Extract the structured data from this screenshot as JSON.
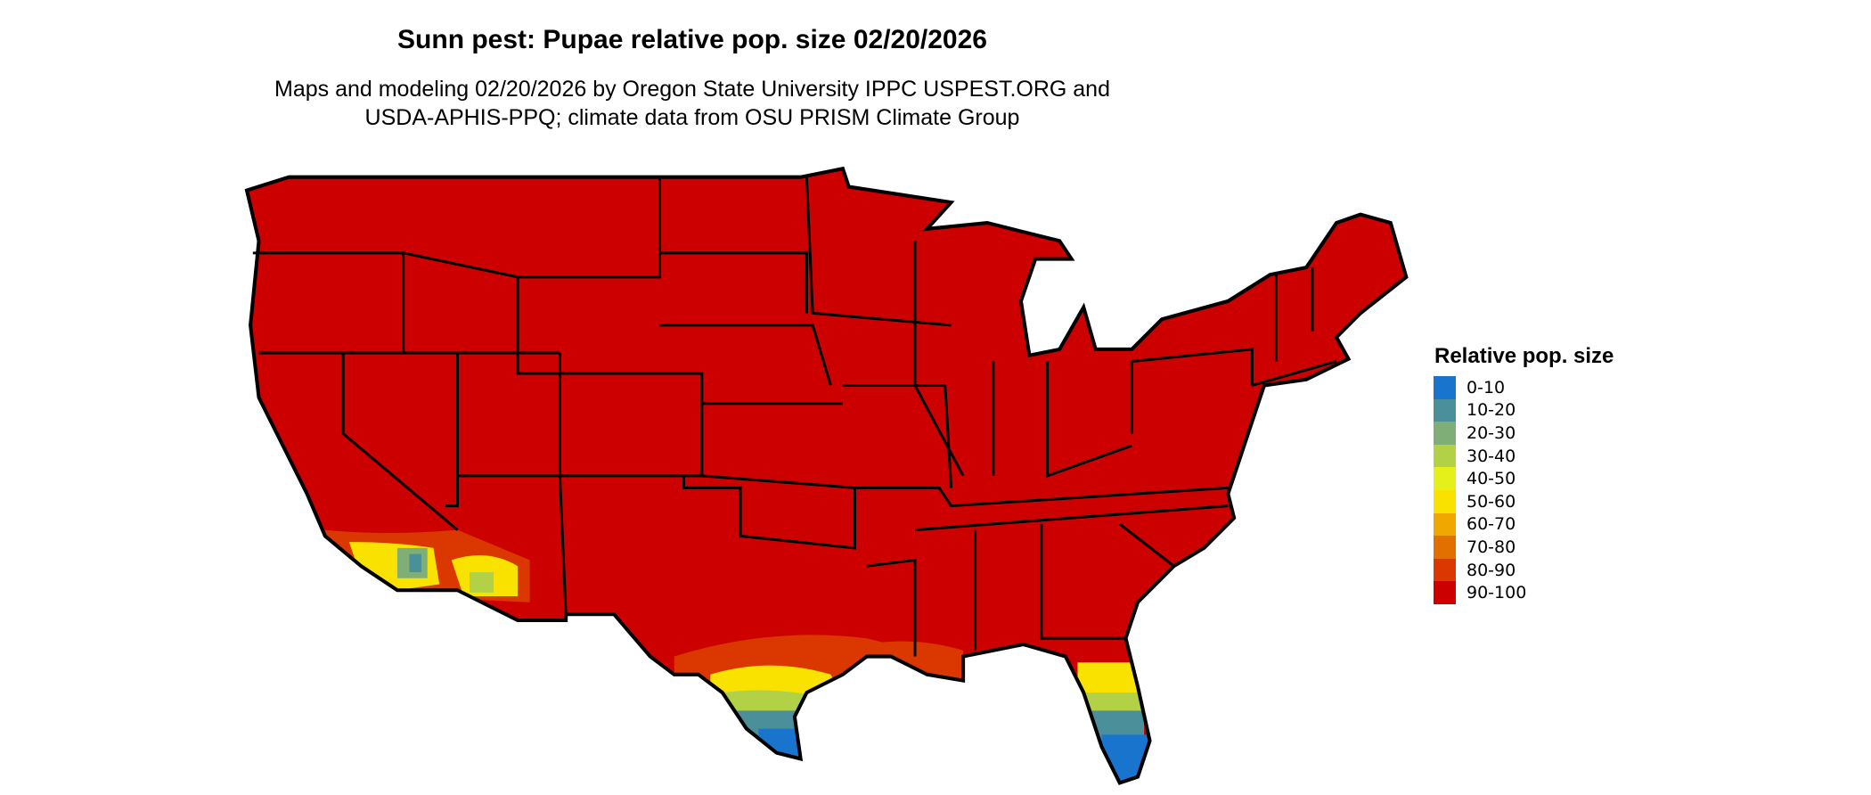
{
  "title": "Sunn pest: Pupae relative pop. size 02/20/2026",
  "subtitle": {
    "line1": "Maps and modeling 02/20/2026 by Oregon State University IPPC USPEST.ORG and",
    "line2": "USDA-APHIS-PPQ; climate data from OSU PRISM Climate Group"
  },
  "legend": {
    "title": "Relative pop. size",
    "items": [
      {
        "label": "0-10",
        "color": "#1874cd"
      },
      {
        "label": "10-20",
        "color": "#4a8f9a"
      },
      {
        "label": "20-30",
        "color": "#7fae77"
      },
      {
        "label": "30-40",
        "color": "#b2d147"
      },
      {
        "label": "40-50",
        "color": "#e5ef19"
      },
      {
        "label": "50-60",
        "color": "#f9e200"
      },
      {
        "label": "60-70",
        "color": "#f0a800"
      },
      {
        "label": "70-80",
        "color": "#e27000"
      },
      {
        "label": "80-90",
        "color": "#da3800"
      },
      {
        "label": "90-100",
        "color": "#cd0000"
      }
    ]
  },
  "map": {
    "region": "Contiguous United States",
    "dominant_class": "90-100"
  }
}
